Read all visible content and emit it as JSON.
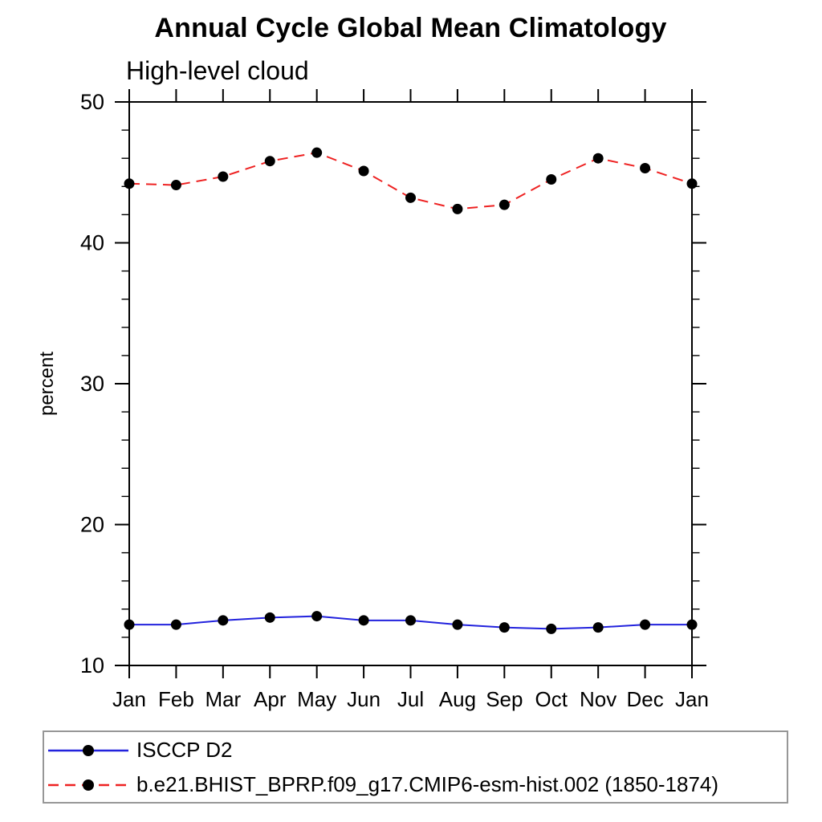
{
  "page": {
    "background": "#ffffff"
  },
  "chart_data": {
    "type": "line",
    "title": "Annual Cycle Global Mean Climatology",
    "subtitle": "High-level cloud",
    "xlabel": "",
    "ylabel": "percent",
    "categories": [
      "Jan",
      "Feb",
      "Mar",
      "Apr",
      "May",
      "Jun",
      "Jul",
      "Aug",
      "Sep",
      "Oct",
      "Nov",
      "Dec",
      "Jan"
    ],
    "ylim": [
      10,
      50
    ],
    "y_major_ticks": [
      10,
      20,
      30,
      40,
      50
    ],
    "y_minor_step": 2,
    "grid": false,
    "frame_color": "#000000",
    "legend_position": "bottom-left-boxed",
    "series": [
      {
        "name": "ISCCP D2",
        "line_style": "solid",
        "line_color": "#2222dd",
        "marker": "circle",
        "marker_color": "#000000",
        "values": [
          12.9,
          12.9,
          13.2,
          13.4,
          13.5,
          13.2,
          13.2,
          12.9,
          12.7,
          12.6,
          12.7,
          12.9,
          12.9
        ]
      },
      {
        "name": "b.e21.BHIST_BPRP.f09_g17.CMIP6-esm-hist.002 (1850-1874)",
        "line_style": "dashed",
        "line_color": "#ee2222",
        "marker": "circle",
        "marker_color": "#000000",
        "values": [
          44.2,
          44.1,
          44.7,
          45.8,
          46.4,
          45.1,
          43.2,
          42.4,
          42.7,
          44.5,
          46.0,
          45.3,
          44.2
        ]
      }
    ]
  }
}
